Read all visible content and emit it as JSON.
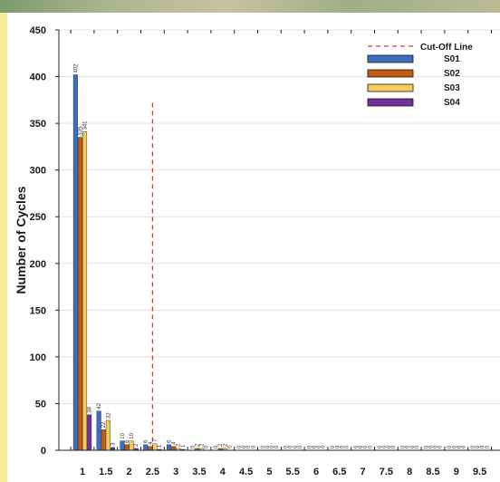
{
  "chart_data": {
    "type": "bar",
    "ylabel": "Number of Cycles",
    "xlabel": "",
    "ylim": [
      0,
      450
    ],
    "yticks": [
      0,
      50,
      100,
      150,
      200,
      250,
      300,
      350,
      400,
      450
    ],
    "categories": [
      "1",
      "1.5",
      "2",
      "2.5",
      "3",
      "3.5",
      "4",
      "4.5",
      "5",
      "5.5",
      "6",
      "6.5",
      "7",
      "7.5",
      "8",
      "8.5",
      "9",
      "9.5"
    ],
    "series": [
      {
        "name": "S01",
        "color": "#3a6fc4",
        "values": [
          402,
          42,
          10,
          6,
          6,
          0,
          0,
          0,
          0,
          0,
          0,
          0,
          0,
          0,
          0,
          0,
          0,
          0
        ]
      },
      {
        "name": "S02",
        "color": "#c55a11",
        "values": [
          335,
          22,
          6,
          4,
          4,
          2,
          2,
          0,
          0,
          0,
          0,
          0,
          0,
          0,
          0,
          0,
          0,
          0
        ]
      },
      {
        "name": "S03",
        "color": "#f5cb5c",
        "values": [
          341,
          32,
          10,
          7,
          2,
          2,
          2,
          0,
          0,
          0,
          0,
          0,
          0,
          0,
          0,
          0,
          0,
          0
        ]
      },
      {
        "name": "S04",
        "color": "#7030a0",
        "values": [
          38,
          3,
          2,
          1,
          1,
          0,
          0,
          0,
          0,
          0,
          0,
          0,
          0,
          0,
          0,
          0,
          0,
          0
        ]
      }
    ],
    "data_labels": {
      "S01": [
        "402",
        "42",
        "10",
        "6",
        "6",
        "0",
        "0",
        "0",
        "0",
        "0",
        "0",
        "0",
        "0",
        "0",
        "0",
        "0",
        "0",
        "0"
      ],
      "S02": [
        "335",
        "22",
        "6",
        "4",
        "4",
        "2",
        "2",
        "0",
        "0",
        "0",
        "0",
        "0",
        "0",
        "0",
        "0",
        "0",
        "0",
        "0"
      ],
      "S03": [
        "341",
        "32",
        "10",
        "7",
        "2",
        "2",
        "2",
        "0",
        "0",
        "0",
        "0",
        "0",
        "0",
        "0",
        "0",
        "0",
        "0",
        "0"
      ],
      "S04": [
        "38",
        "3",
        "2",
        "1",
        "1",
        "0",
        "0",
        "0",
        "0",
        "0",
        "0",
        "0",
        "0",
        "0",
        "0",
        "0",
        "0",
        "0"
      ]
    },
    "cutoff": {
      "name": "Cut-Off Line",
      "x": 2.5,
      "color": "#e03030"
    },
    "legend_placement": "top-right",
    "grid": true
  }
}
